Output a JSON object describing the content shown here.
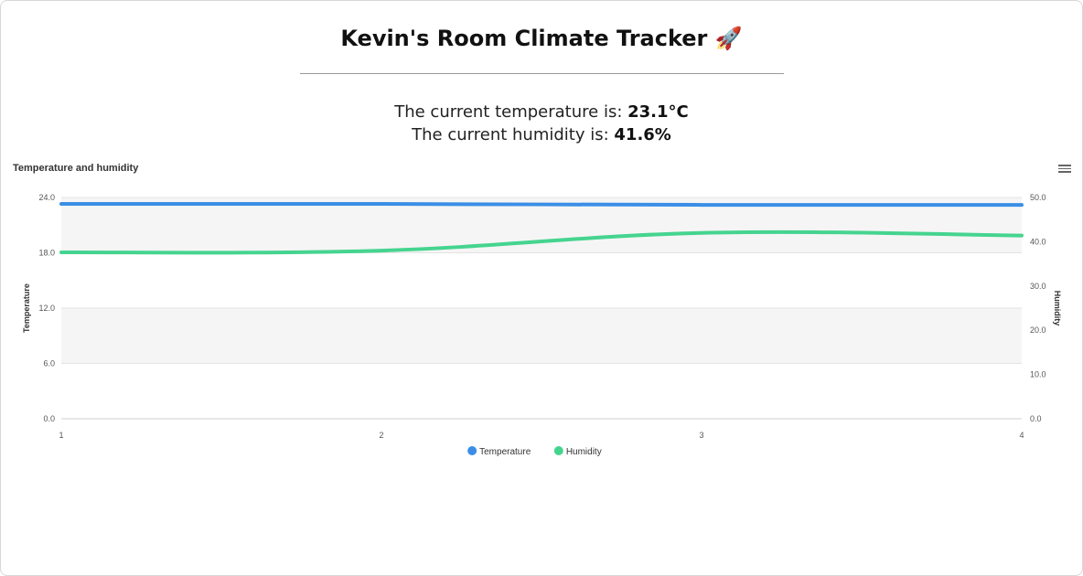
{
  "header": {
    "title": "Kevin's Room Climate Tracker 🚀"
  },
  "readouts": {
    "temperature_label": "The current temperature is: ",
    "temperature_value": "23.1°C",
    "humidity_label": "The current humidity is: ",
    "humidity_value": "41.6%"
  },
  "chart_data": {
    "type": "line",
    "title": "Temperature and humidity",
    "x": [
      1,
      2,
      3,
      4
    ],
    "x_ticks": [
      "1",
      "2",
      "3",
      "4"
    ],
    "series": [
      {
        "name": "Temperature",
        "axis": "left",
        "color": "#3a8ee6",
        "values": [
          23.3,
          23.3,
          23.2,
          23.2
        ]
      },
      {
        "name": "Humidity",
        "axis": "right",
        "color": "#45d48f",
        "values": [
          37.6,
          38.0,
          42.0,
          41.4
        ]
      }
    ],
    "y_left": {
      "label": "Temperature",
      "range": [
        0,
        24
      ],
      "ticks": [
        "0.0",
        "6.0",
        "12.0",
        "18.0",
        "24.0"
      ]
    },
    "y_right": {
      "label": "Humidity",
      "range": [
        0,
        50
      ],
      "ticks": [
        "0.0",
        "10.0",
        "20.0",
        "30.0",
        "40.0",
        "50.0"
      ]
    },
    "grid": true,
    "alternate_bands": true,
    "legend_position": "bottom-center"
  }
}
